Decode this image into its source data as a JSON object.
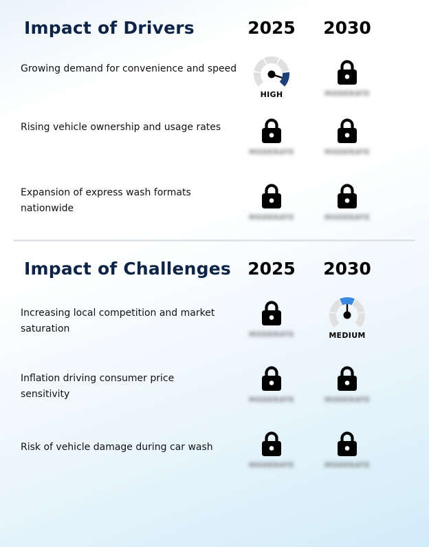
{
  "drivers": {
    "title": "Impact of Drivers",
    "years": [
      "2025",
      "2030"
    ],
    "rows": [
      {
        "label": "Growing demand for convenience and speed",
        "cells": [
          {
            "type": "gauge",
            "level": "HIGH",
            "value_fraction": 0.9,
            "color": "#1f3f7a"
          },
          {
            "type": "locked",
            "hidden_text": "MODERATE"
          }
        ]
      },
      {
        "label": "Rising vehicle ownership and usage rates",
        "cells": [
          {
            "type": "locked",
            "hidden_text": "MODERATE"
          },
          {
            "type": "locked",
            "hidden_text": "MODERATE"
          }
        ]
      },
      {
        "label": "Expansion of express wash formats nationwide",
        "cells": [
          {
            "type": "locked",
            "hidden_text": "MODERATE"
          },
          {
            "type": "locked",
            "hidden_text": "MODERATE"
          }
        ]
      }
    ]
  },
  "challenges": {
    "title": "Impact of Challenges",
    "years": [
      "2025",
      "2030"
    ],
    "rows": [
      {
        "label": "Increasing local competition and market saturation",
        "cells": [
          {
            "type": "locked",
            "hidden_text": "MODERATE"
          },
          {
            "type": "gauge",
            "level": "MEDIUM",
            "value_fraction": 0.5,
            "color": "#3a8be0"
          }
        ]
      },
      {
        "label": "Inflation driving consumer price sensitivity",
        "cells": [
          {
            "type": "locked",
            "hidden_text": "MODERATE"
          },
          {
            "type": "locked",
            "hidden_text": "MODERATE"
          }
        ]
      },
      {
        "label": "Risk of vehicle damage during car wash",
        "cells": [
          {
            "type": "locked",
            "hidden_text": "MODERATE"
          },
          {
            "type": "locked",
            "hidden_text": "MODERATE"
          }
        ]
      }
    ]
  },
  "icons": {
    "lock": "lock-icon",
    "gauge": "gauge-icon"
  },
  "colors": {
    "title": "#0d2447",
    "gauge_track": "#e0e0e0",
    "high": "#1f3f7a",
    "medium": "#3a8be0",
    "lock": "#000000"
  }
}
